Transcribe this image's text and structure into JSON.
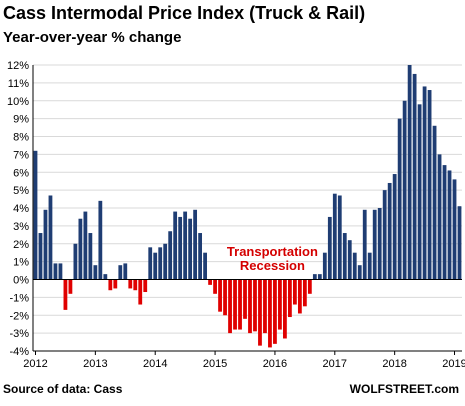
{
  "header": {
    "title": "Cass Intermodal Price Index (Truck & Rail)",
    "subtitle": "Year-over-year % change"
  },
  "footer": {
    "source": "Source of data: Cass",
    "brand": "WOLFSTREET.com"
  },
  "chart_data": {
    "type": "bar",
    "title": "Cass Intermodal Price Index (Truck & Rail)",
    "subtitle": "Year-over-year % change",
    "xlabel": "",
    "ylabel": "",
    "ylim": [
      -4,
      12
    ],
    "y_ticks": [
      "-4%",
      "-3%",
      "-2%",
      "-1%",
      "0%",
      "1%",
      "2%",
      "3%",
      "4%",
      "5%",
      "6%",
      "7%",
      "8%",
      "9%",
      "10%",
      "11%",
      "12%"
    ],
    "x_tick_labels": [
      "2012",
      "2013",
      "2014",
      "2015",
      "2016",
      "2017",
      "2018",
      "2019"
    ],
    "start": "2012-01",
    "values": [
      7.2,
      2.6,
      3.9,
      4.7,
      0.9,
      0.9,
      -1.7,
      -0.8,
      2.0,
      3.4,
      3.8,
      2.6,
      0.8,
      4.4,
      0.3,
      -0.6,
      -0.5,
      0.8,
      0.9,
      -0.5,
      -0.6,
      -1.4,
      -0.7,
      1.8,
      1.5,
      1.8,
      2.0,
      2.7,
      3.8,
      3.5,
      3.8,
      3.4,
      3.9,
      2.6,
      1.5,
      -0.3,
      -0.8,
      -1.8,
      -2.0,
      -3.0,
      -2.8,
      -2.8,
      -2.2,
      -3.0,
      -2.9,
      -3.7,
      -3.0,
      -3.8,
      -3.6,
      -2.8,
      -3.3,
      -2.1,
      -1.4,
      -1.9,
      -1.5,
      -0.8,
      0.3,
      0.3,
      1.5,
      3.5,
      4.8,
      4.7,
      2.6,
      2.2,
      1.5,
      0.8,
      3.9,
      1.5,
      3.9,
      4.0,
      5.0,
      5.4,
      5.9,
      9.0,
      10.0,
      12.0,
      11.5,
      9.8,
      10.8,
      10.6,
      8.6,
      7.0,
      6.4,
      6.1,
      5.6,
      4.1
    ],
    "bar_color_positive": "#1f3d73",
    "bar_color_negative": "#e00000",
    "grid": true,
    "annotation": {
      "line1": "Transportation",
      "line2": "Recession",
      "color": "#d40000"
    }
  }
}
